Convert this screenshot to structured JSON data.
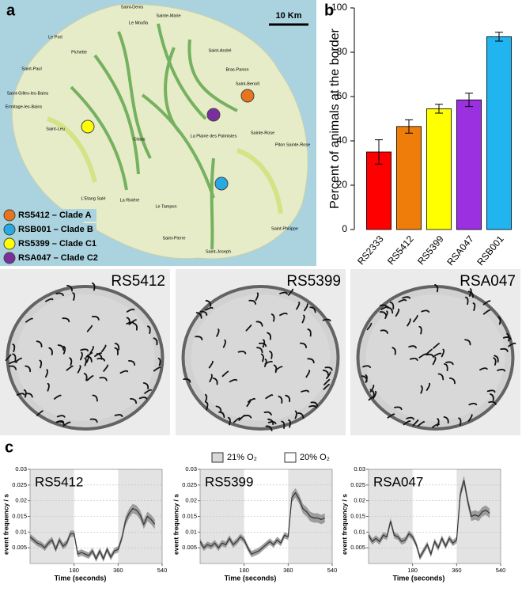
{
  "panel_labels": [
    "a",
    "b",
    "c"
  ],
  "map": {
    "scale_bar": "10 Km",
    "places": [
      "Saint-Denis",
      "Sainte-Marie",
      "Le Moufia",
      "Le Port",
      "Pichette",
      "Saint-André",
      "Bras-Panon",
      "Saint-Paul",
      "Saint-Benoît",
      "Saint-Gilles-les-Bains",
      "Ermitage-les-Bains",
      "Cilaos",
      "La Plaine des Palmistes",
      "Sainte-Rose",
      "Piton Sainte-Rose",
      "Saint-Leu",
      "L'Etang Salé",
      "La Rivière",
      "Le Tampon",
      "Saint-Pierre",
      "Saint-Joseph",
      "Saint-Philippe"
    ],
    "legend": [
      {
        "label": "RS5412 – Clade A",
        "color": "#e8741e"
      },
      {
        "label": "RSB001 – Clade B",
        "color": "#27a9e1"
      },
      {
        "label": "RS5399 – Clade C1",
        "color": "#ffff00"
      },
      {
        "label": "RSA047 – Clade C2",
        "color": "#7b2f9e"
      }
    ]
  },
  "photos": {
    "labels": [
      "RS5412",
      "RS5399",
      "RSA047"
    ]
  },
  "legend_c": [
    {
      "label": "21% O₂",
      "color": "#d9d9d9"
    },
    {
      "label": "20% O₂",
      "color": "#ffffff"
    }
  ],
  "chart_data": [
    {
      "type": "bar",
      "ylabel": "Percent of animals at the border",
      "categories": [
        "RS2333",
        "RS5412",
        "RS5399",
        "RSA047",
        "RSB001"
      ],
      "values": [
        35,
        46.5,
        54.5,
        58.5,
        87
      ],
      "errors": [
        5.5,
        3,
        2,
        3,
        2
      ],
      "colors": [
        "#ff0000",
        "#ef7d0a",
        "#ffff00",
        "#9b30e0",
        "#20b4f0"
      ],
      "ylim": [
        0,
        100
      ],
      "yticks": [
        0,
        20,
        40,
        60,
        80,
        100
      ],
      "grid": false
    },
    {
      "type": "line",
      "title": "RS5412",
      "xlabel": "Time (seconds)",
      "ylabel": "event frequency / s",
      "color": "#333333",
      "grid": true,
      "x": [
        0,
        15,
        30,
        45,
        60,
        75,
        90,
        105,
        120,
        135,
        150,
        165,
        180,
        195,
        210,
        225,
        240,
        255,
        270,
        285,
        300,
        315,
        330,
        345,
        360,
        375,
        390,
        405,
        420,
        435,
        450,
        465,
        480,
        495,
        510
      ],
      "values": [
        0.0085,
        0.0075,
        0.0065,
        0.006,
        0.005,
        0.0065,
        0.0075,
        0.0045,
        0.0075,
        0.0055,
        0.0065,
        0.0095,
        0.0095,
        0.003,
        0.0035,
        0.003,
        0.0025,
        0.004,
        0.0015,
        0.004,
        0.0015,
        0.0045,
        0.002,
        0.004,
        0.0045,
        0.008,
        0.0135,
        0.016,
        0.0175,
        0.017,
        0.0155,
        0.0125,
        0.015,
        0.014,
        0.0125
      ],
      "errors": [
        0.001,
        0.001,
        0.001,
        0.001,
        0.001,
        0.001,
        0.001,
        0.001,
        0.001,
        0.001,
        0.001,
        0.001,
        0.001,
        0.001,
        0.001,
        0.001,
        0.001,
        0.001,
        0.001,
        0.001,
        0.001,
        0.001,
        0.001,
        0.001,
        0.001,
        0.001,
        0.0015,
        0.0015,
        0.0015,
        0.0015,
        0.0015,
        0.0015,
        0.0015,
        0.0015,
        0.0015
      ],
      "shaded_spans": [
        [
          0,
          180
        ],
        [
          360,
          540
        ]
      ],
      "xlim": [
        0,
        540
      ],
      "xticks": [
        180,
        360,
        540
      ],
      "ylim": [
        0,
        0.03
      ],
      "yticks": [
        0.005,
        0.01,
        0.015,
        0.02,
        0.025,
        0.03
      ]
    },
    {
      "type": "line",
      "title": "RS5399",
      "xlabel": "Time (seconds)",
      "ylabel": "event frequency / s",
      "color": "#333333",
      "grid": true,
      "x": [
        0,
        15,
        30,
        45,
        60,
        75,
        90,
        105,
        120,
        135,
        150,
        165,
        180,
        195,
        210,
        225,
        240,
        255,
        270,
        285,
        300,
        315,
        330,
        345,
        360,
        375,
        390,
        405,
        420,
        435,
        450,
        465,
        480,
        495,
        510
      ],
      "values": [
        0.007,
        0.005,
        0.006,
        0.0055,
        0.0065,
        0.005,
        0.0065,
        0.006,
        0.008,
        0.006,
        0.007,
        0.0085,
        0.0075,
        0.005,
        0.003,
        0.0035,
        0.004,
        0.005,
        0.006,
        0.007,
        0.006,
        0.0075,
        0.0065,
        0.009,
        0.0085,
        0.021,
        0.0225,
        0.0205,
        0.0175,
        0.0165,
        0.015,
        0.0145,
        0.0145,
        0.014,
        0.0145
      ],
      "errors": [
        0.001,
        0.001,
        0.001,
        0.001,
        0.001,
        0.001,
        0.001,
        0.001,
        0.001,
        0.001,
        0.001,
        0.001,
        0.001,
        0.001,
        0.001,
        0.001,
        0.001,
        0.001,
        0.001,
        0.001,
        0.001,
        0.001,
        0.001,
        0.001,
        0.001,
        0.0015,
        0.0015,
        0.0015,
        0.0015,
        0.0015,
        0.0015,
        0.0015,
        0.0015,
        0.0015,
        0.0015
      ],
      "shaded_spans": [
        [
          0,
          180
        ],
        [
          360,
          540
        ]
      ],
      "xlim": [
        0,
        540
      ],
      "xticks": [
        180,
        360,
        540
      ],
      "ylim": [
        0,
        0.03
      ],
      "yticks": [
        0.005,
        0.01,
        0.015,
        0.02,
        0.025,
        0.03
      ]
    },
    {
      "type": "line",
      "title": "RSA047",
      "xlabel": "Time (seconds)",
      "ylabel": "event frequency / s",
      "color": "#333333",
      "grid": true,
      "x": [
        0,
        15,
        30,
        45,
        60,
        75,
        90,
        105,
        120,
        135,
        150,
        165,
        180,
        195,
        210,
        225,
        240,
        255,
        270,
        285,
        300,
        315,
        330,
        345,
        360,
        375,
        390,
        405,
        420,
        435,
        450,
        465,
        480,
        495
      ],
      "values": [
        0.009,
        0.007,
        0.008,
        0.007,
        0.009,
        0.0085,
        0.0135,
        0.009,
        0.0085,
        0.007,
        0.0075,
        0.0095,
        0.0085,
        0.006,
        0.002,
        0.004,
        0.006,
        0.003,
        0.007,
        0.005,
        0.008,
        0.0055,
        0.008,
        0.0065,
        0.0075,
        0.022,
        0.0265,
        0.02,
        0.015,
        0.0155,
        0.015,
        0.0165,
        0.017,
        0.016
      ],
      "errors": [
        0.001,
        0.001,
        0.001,
        0.001,
        0.001,
        0.001,
        0.001,
        0.001,
        0.001,
        0.001,
        0.001,
        0.001,
        0.001,
        0.001,
        0.001,
        0.001,
        0.001,
        0.001,
        0.001,
        0.001,
        0.001,
        0.001,
        0.001,
        0.001,
        0.001,
        0.0015,
        0.0015,
        0.0015,
        0.0015,
        0.0015,
        0.0015,
        0.0015,
        0.0015,
        0.0015
      ],
      "shaded_spans": [
        [
          0,
          180
        ],
        [
          360,
          540
        ]
      ],
      "xlim": [
        0,
        540
      ],
      "xticks": [
        180,
        360,
        540
      ],
      "ylim": [
        0,
        0.03
      ],
      "yticks": [
        0.005,
        0.01,
        0.015,
        0.02,
        0.025,
        0.03
      ]
    }
  ]
}
